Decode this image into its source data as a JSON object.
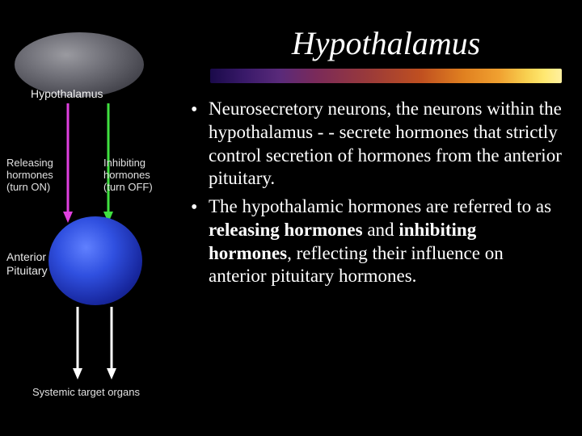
{
  "title": "Hypothalamus",
  "bullets": [
    {
      "text": "Neurosecretory neurons, the neurons within the hypothalamus - - secrete hormones that strictly control secretion of hormones from the anterior pituitary."
    },
    {
      "html": "The hypothalamic hormones are referred to as <span class=\"bold\">releasing hormones</span> and <span class=\"bold\">inhibiting hormones</span>, reflecting their influence on anterior pituitary hormones."
    }
  ],
  "diagram": {
    "hypothalamus_label": "Hypothalamus",
    "releasing_label": "Releasing\nhormones\n(turn ON)",
    "inhibiting_label": "Inhibiting\nhormones\n(turn OFF)",
    "pituitary_label": "Anterior\nPituitary",
    "target_label": "Systemic target organs",
    "colors": {
      "releasing_arrow": "#e040e0",
      "inhibiting_arrow": "#40e040",
      "output_arrow": "#ffffff",
      "hypothalamus_fill": "#6a6a72",
      "pituitary_fill": "#2030c0",
      "background": "#000000",
      "text": "#ffffff"
    },
    "type": "flowchart"
  },
  "style": {
    "title_fontsize": 40,
    "title_fontstyle": "italic",
    "body_fontsize": 23,
    "body_font": "Times New Roman",
    "label_font": "Arial",
    "background": "#000000"
  }
}
